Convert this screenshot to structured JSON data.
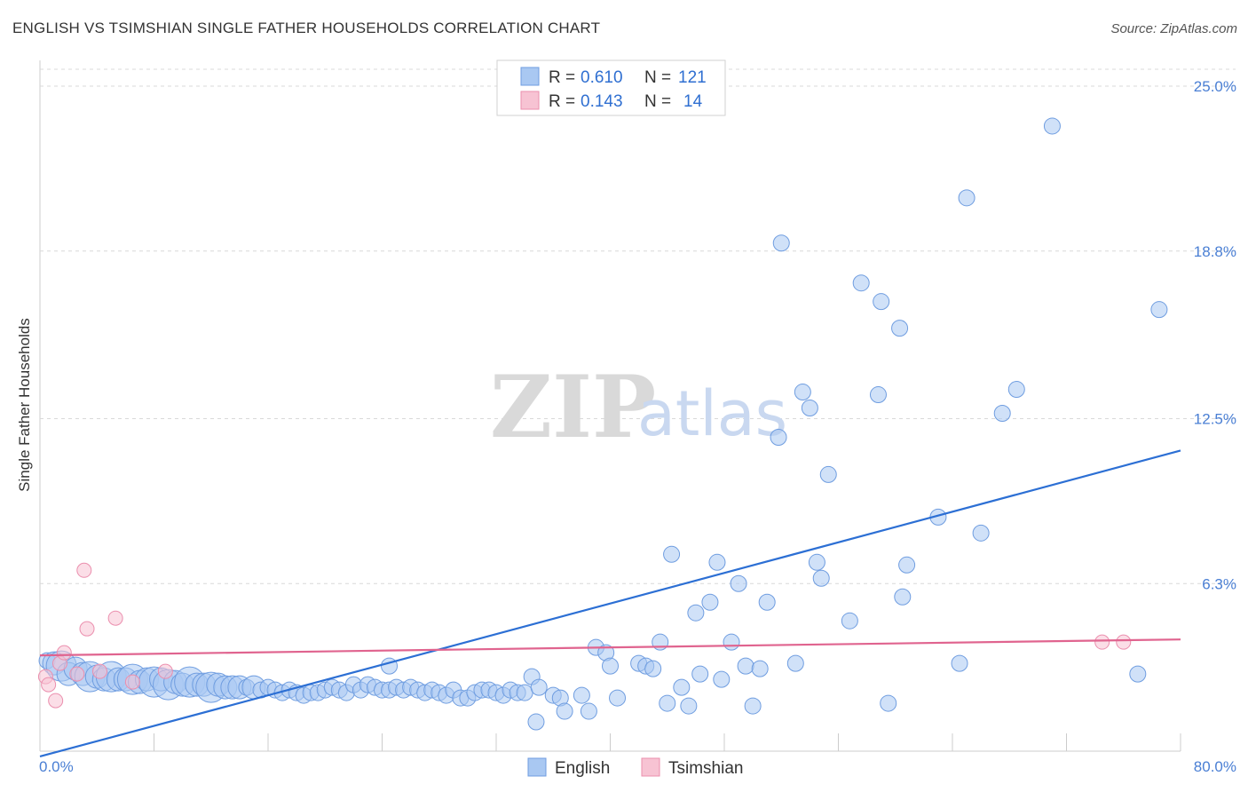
{
  "title": "ENGLISH VS TSIMSHIAN SINGLE FATHER HOUSEHOLDS CORRELATION CHART",
  "source": "Source: ZipAtlas.com",
  "watermark": {
    "zip": "ZIP",
    "atlas": "atlas"
  },
  "legend": {
    "english": {
      "r_label": "R =",
      "r_value": "0.610",
      "n_label": "N =",
      "n_value": "121"
    },
    "tsimshian": {
      "r_label": "R =",
      "r_value": "0.143",
      "n_label": "N =",
      "n_value": "14"
    }
  },
  "bottom_legend": {
    "english": "English",
    "tsimshian": "Tsimshian"
  },
  "colors": {
    "english_fill": "#a9c8f2",
    "english_stroke": "#6f9de0",
    "english_line": "#2c6fd4",
    "tsimshian_fill": "#f7c3d3",
    "tsimshian_stroke": "#eb8fae",
    "tsimshian_line": "#e0648f",
    "grid": "#d9d9d9",
    "tick_text": "#4a7fd4"
  },
  "chart_data": {
    "type": "scatter",
    "title": "ENGLISH VS TSIMSHIAN SINGLE FATHER HOUSEHOLDS CORRELATION CHART",
    "xlabel": "",
    "ylabel": "Single Father Households",
    "xlim": [
      0,
      80
    ],
    "ylim": [
      0,
      25.0
    ],
    "x_tick_labels": [
      "0.0%",
      "80.0%"
    ],
    "y_ticks": [
      6.3,
      12.5,
      18.8,
      25.0
    ],
    "y_tick_labels": [
      "6.3%",
      "12.5%",
      "18.8%",
      "25.0%"
    ],
    "series": [
      {
        "name": "English",
        "trend": {
          "x": [
            0,
            80
          ],
          "y": [
            -0.2,
            11.3
          ]
        },
        "points": [
          {
            "x": 0.5,
            "y": 3.4,
            "s": 1
          },
          {
            "x": 1.0,
            "y": 3.3,
            "s": 2
          },
          {
            "x": 1.5,
            "y": 3.2,
            "s": 3
          },
          {
            "x": 2.0,
            "y": 2.9,
            "s": 2
          },
          {
            "x": 2.5,
            "y": 3.1,
            "s": 2
          },
          {
            "x": 3.0,
            "y": 2.9,
            "s": 2
          },
          {
            "x": 3.5,
            "y": 2.8,
            "s": 3
          },
          {
            "x": 4.0,
            "y": 2.8,
            "s": 2
          },
          {
            "x": 4.5,
            "y": 2.7,
            "s": 2
          },
          {
            "x": 5.0,
            "y": 2.8,
            "s": 3
          },
          {
            "x": 5.5,
            "y": 2.7,
            "s": 2
          },
          {
            "x": 6.0,
            "y": 2.7,
            "s": 2
          },
          {
            "x": 6.5,
            "y": 2.7,
            "s": 3
          },
          {
            "x": 7.0,
            "y": 2.6,
            "s": 2
          },
          {
            "x": 7.5,
            "y": 2.7,
            "s": 2
          },
          {
            "x": 8.0,
            "y": 2.6,
            "s": 3
          },
          {
            "x": 8.5,
            "y": 2.7,
            "s": 2
          },
          {
            "x": 9.0,
            "y": 2.5,
            "s": 3
          },
          {
            "x": 9.5,
            "y": 2.6,
            "s": 2
          },
          {
            "x": 10.0,
            "y": 2.5,
            "s": 2
          },
          {
            "x": 10.5,
            "y": 2.6,
            "s": 3
          },
          {
            "x": 11.0,
            "y": 2.5,
            "s": 2
          },
          {
            "x": 11.5,
            "y": 2.5,
            "s": 2
          },
          {
            "x": 12.0,
            "y": 2.4,
            "s": 3
          },
          {
            "x": 12.5,
            "y": 2.5,
            "s": 2
          },
          {
            "x": 13.0,
            "y": 2.4,
            "s": 2
          },
          {
            "x": 13.5,
            "y": 2.4,
            "s": 2
          },
          {
            "x": 14.0,
            "y": 2.4,
            "s": 2
          },
          {
            "x": 14.5,
            "y": 2.4,
            "s": 1
          },
          {
            "x": 15.0,
            "y": 2.4,
            "s": 2
          },
          {
            "x": 15.5,
            "y": 2.3,
            "s": 1
          },
          {
            "x": 16.0,
            "y": 2.4,
            "s": 1
          },
          {
            "x": 16.5,
            "y": 2.3,
            "s": 1
          },
          {
            "x": 17.0,
            "y": 2.2,
            "s": 1
          },
          {
            "x": 17.5,
            "y": 2.3,
            "s": 1
          },
          {
            "x": 18.0,
            "y": 2.2,
            "s": 1
          },
          {
            "x": 18.5,
            "y": 2.1,
            "s": 1
          },
          {
            "x": 19.0,
            "y": 2.2,
            "s": 1
          },
          {
            "x": 19.5,
            "y": 2.2,
            "s": 1
          },
          {
            "x": 20.0,
            "y": 2.3,
            "s": 1
          },
          {
            "x": 20.5,
            "y": 2.4,
            "s": 1
          },
          {
            "x": 21.0,
            "y": 2.3,
            "s": 1
          },
          {
            "x": 21.5,
            "y": 2.2,
            "s": 1
          },
          {
            "x": 22.0,
            "y": 2.5,
            "s": 1
          },
          {
            "x": 22.5,
            "y": 2.3,
            "s": 1
          },
          {
            "x": 23.0,
            "y": 2.5,
            "s": 1
          },
          {
            "x": 23.5,
            "y": 2.4,
            "s": 1
          },
          {
            "x": 24.0,
            "y": 2.3,
            "s": 1
          },
          {
            "x": 24.5,
            "y": 2.3,
            "s": 1
          },
          {
            "x": 25.0,
            "y": 2.4,
            "s": 1
          },
          {
            "x": 25.5,
            "y": 2.3,
            "s": 1
          },
          {
            "x": 26.0,
            "y": 2.4,
            "s": 1
          },
          {
            "x": 26.5,
            "y": 2.3,
            "s": 1
          },
          {
            "x": 27.0,
            "y": 2.2,
            "s": 1
          },
          {
            "x": 27.5,
            "y": 2.3,
            "s": 1
          },
          {
            "x": 28.0,
            "y": 2.2,
            "s": 1
          },
          {
            "x": 28.5,
            "y": 2.1,
            "s": 1
          },
          {
            "x": 29.0,
            "y": 2.3,
            "s": 1
          },
          {
            "x": 29.5,
            "y": 2.0,
            "s": 1
          },
          {
            "x": 30.0,
            "y": 2.0,
            "s": 1
          },
          {
            "x": 30.5,
            "y": 2.2,
            "s": 1
          },
          {
            "x": 31.0,
            "y": 2.3,
            "s": 1
          },
          {
            "x": 31.5,
            "y": 2.3,
            "s": 1
          },
          {
            "x": 32.0,
            "y": 2.2,
            "s": 1
          },
          {
            "x": 32.5,
            "y": 2.1,
            "s": 1
          },
          {
            "x": 33.0,
            "y": 2.3,
            "s": 1
          },
          {
            "x": 33.5,
            "y": 2.2,
            "s": 1
          },
          {
            "x": 34.0,
            "y": 2.2,
            "s": 1
          },
          {
            "x": 24.5,
            "y": 3.2,
            "s": 1
          },
          {
            "x": 34.5,
            "y": 2.8,
            "s": 1
          },
          {
            "x": 35.0,
            "y": 2.4,
            "s": 1
          },
          {
            "x": 36.0,
            "y": 2.1,
            "s": 1
          },
          {
            "x": 36.5,
            "y": 2.0,
            "s": 1
          },
          {
            "x": 38.0,
            "y": 2.1,
            "s": 1
          },
          {
            "x": 34.8,
            "y": 1.1,
            "s": 1
          },
          {
            "x": 36.8,
            "y": 1.5,
            "s": 1
          },
          {
            "x": 38.5,
            "y": 1.5,
            "s": 1
          },
          {
            "x": 39.0,
            "y": 3.9,
            "s": 1
          },
          {
            "x": 39.7,
            "y": 3.7,
            "s": 1
          },
          {
            "x": 40.0,
            "y": 3.2,
            "s": 1
          },
          {
            "x": 40.5,
            "y": 2.0,
            "s": 1
          },
          {
            "x": 42.0,
            "y": 3.3,
            "s": 1
          },
          {
            "x": 42.5,
            "y": 3.2,
            "s": 1
          },
          {
            "x": 43.0,
            "y": 3.1,
            "s": 1
          },
          {
            "x": 43.5,
            "y": 4.1,
            "s": 1
          },
          {
            "x": 44.0,
            "y": 1.8,
            "s": 1
          },
          {
            "x": 44.3,
            "y": 7.4,
            "s": 1
          },
          {
            "x": 45.0,
            "y": 2.4,
            "s": 1
          },
          {
            "x": 45.5,
            "y": 1.7,
            "s": 1
          },
          {
            "x": 46.0,
            "y": 5.2,
            "s": 1
          },
          {
            "x": 46.3,
            "y": 2.9,
            "s": 1
          },
          {
            "x": 47.0,
            "y": 5.6,
            "s": 1
          },
          {
            "x": 47.5,
            "y": 7.1,
            "s": 1
          },
          {
            "x": 47.8,
            "y": 2.7,
            "s": 1
          },
          {
            "x": 48.5,
            "y": 4.1,
            "s": 1
          },
          {
            "x": 49.0,
            "y": 6.3,
            "s": 1
          },
          {
            "x": 49.5,
            "y": 3.2,
            "s": 1
          },
          {
            "x": 50.0,
            "y": 1.7,
            "s": 1
          },
          {
            "x": 50.5,
            "y": 3.1,
            "s": 1
          },
          {
            "x": 51.0,
            "y": 5.6,
            "s": 1
          },
          {
            "x": 52.0,
            "y": 19.1,
            "s": 1
          },
          {
            "x": 51.8,
            "y": 11.8,
            "s": 1
          },
          {
            "x": 53.0,
            "y": 3.3,
            "s": 1
          },
          {
            "x": 53.5,
            "y": 13.5,
            "s": 1
          },
          {
            "x": 54.0,
            "y": 12.9,
            "s": 1
          },
          {
            "x": 54.5,
            "y": 7.1,
            "s": 1
          },
          {
            "x": 54.8,
            "y": 6.5,
            "s": 1
          },
          {
            "x": 55.3,
            "y": 10.4,
            "s": 1
          },
          {
            "x": 56.8,
            "y": 4.9,
            "s": 1
          },
          {
            "x": 57.6,
            "y": 17.6,
            "s": 1
          },
          {
            "x": 58.8,
            "y": 13.4,
            "s": 1
          },
          {
            "x": 59.0,
            "y": 16.9,
            "s": 1
          },
          {
            "x": 59.5,
            "y": 1.8,
            "s": 1
          },
          {
            "x": 60.3,
            "y": 15.9,
            "s": 1
          },
          {
            "x": 60.5,
            "y": 5.8,
            "s": 1
          },
          {
            "x": 60.8,
            "y": 7.0,
            "s": 1
          },
          {
            "x": 63.0,
            "y": 8.8,
            "s": 1
          },
          {
            "x": 64.5,
            "y": 3.3,
            "s": 1
          },
          {
            "x": 65.0,
            "y": 20.8,
            "s": 1
          },
          {
            "x": 66.0,
            "y": 8.2,
            "s": 1
          },
          {
            "x": 67.5,
            "y": 12.7,
            "s": 1
          },
          {
            "x": 68.5,
            "y": 13.6,
            "s": 1
          },
          {
            "x": 71.0,
            "y": 23.5,
            "s": 1
          },
          {
            "x": 77.0,
            "y": 2.9,
            "s": 1
          },
          {
            "x": 78.5,
            "y": 16.6,
            "s": 1
          }
        ]
      },
      {
        "name": "Tsimshian",
        "trend": {
          "x": [
            0,
            80
          ],
          "y": [
            3.6,
            4.2
          ]
        },
        "points": [
          {
            "x": 0.4,
            "y": 2.8,
            "s": 1
          },
          {
            "x": 0.6,
            "y": 2.5,
            "s": 1
          },
          {
            "x": 1.1,
            "y": 1.9,
            "s": 1
          },
          {
            "x": 1.4,
            "y": 3.3,
            "s": 1
          },
          {
            "x": 1.7,
            "y": 3.7,
            "s": 1
          },
          {
            "x": 2.6,
            "y": 2.9,
            "s": 1
          },
          {
            "x": 3.1,
            "y": 6.8,
            "s": 1
          },
          {
            "x": 3.3,
            "y": 4.6,
            "s": 1
          },
          {
            "x": 4.2,
            "y": 3.0,
            "s": 1
          },
          {
            "x": 5.3,
            "y": 5.0,
            "s": 1
          },
          {
            "x": 6.5,
            "y": 2.6,
            "s": 1
          },
          {
            "x": 8.8,
            "y": 3.0,
            "s": 1
          },
          {
            "x": 74.5,
            "y": 4.1,
            "s": 1
          },
          {
            "x": 76.0,
            "y": 4.1,
            "s": 1
          }
        ]
      }
    ]
  }
}
